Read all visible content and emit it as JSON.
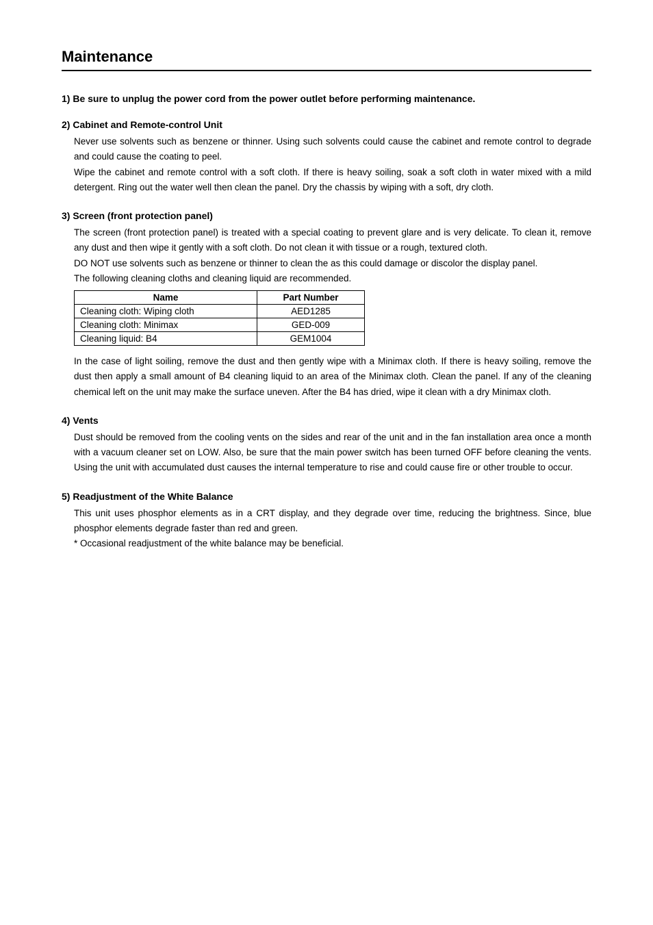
{
  "title": "Maintenance",
  "sections": {
    "s1": {
      "heading": "1) Be sure to unplug the power cord from the power outlet before performing maintenance."
    },
    "s2": {
      "heading": "2) Cabinet and Remote-control Unit",
      "p1": "Never use solvents such as benzene or thinner. Using such solvents could cause the cabinet and remote control to degrade and could cause the coating to peel.",
      "p2": "Wipe the cabinet and remote control with a soft cloth. If there is heavy soiling, soak a soft cloth in water mixed with a mild detergent. Ring out the water well then clean the panel. Dry the chassis by wiping with a soft, dry cloth."
    },
    "s3": {
      "heading": "3) Screen (front protection panel)",
      "p1": "The screen (front protection panel) is treated with a special coating to prevent glare and is very delicate. To clean it, remove any dust and then wipe it gently with a soft cloth. Do not clean it with tissue or a rough, textured cloth.",
      "p2": "DO NOT use solvents such as benzene or thinner to clean the as this could damage or discolor the display panel.",
      "p3": "The following cleaning cloths and cleaning liquid are recommended.",
      "table": {
        "headers": {
          "name": "Name",
          "part": "Part Number"
        },
        "rows": [
          {
            "name": "Cleaning cloth: Wiping cloth",
            "part": "AED1285"
          },
          {
            "name": "Cleaning cloth: Minimax",
            "part": "GED-009"
          },
          {
            "name": "Cleaning liquid: B4",
            "part": "GEM1004"
          }
        ]
      },
      "p4": "In the case of light soiling, remove the dust and then gently wipe with a Minimax cloth. If there is heavy soiling, remove the dust then apply a small amount of B4 cleaning liquid to an area of the Minimax cloth. Clean the panel. If any of the cleaning chemical left on the unit may make the surface uneven. After the B4 has dried, wipe it clean with a dry Minimax cloth."
    },
    "s4": {
      "heading": "4) Vents",
      "p1": "Dust should be removed from the cooling vents on the sides and rear of the unit and in the fan installation area once a month with a vacuum cleaner set on LOW. Also, be sure that the main power switch has been turned OFF before cleaning the vents. Using the unit with accumulated dust causes the internal temperature to rise and could cause fire or other trouble to occur."
    },
    "s5": {
      "heading": "5) Readjustment of the White Balance",
      "p1": "This unit uses phosphor elements as in a CRT display, and they degrade over time, reducing the brightness. Since, blue phosphor elements degrade faster than red  and green.",
      "p2": "* Occasional readjustment of the white balance may be beneficial."
    }
  },
  "style": {
    "title_fontsize": 22,
    "heading_fontsize": 14,
    "body_fontsize": 13.5,
    "line_height": 1.65,
    "text_color": "#000000",
    "background_color": "#ffffff",
    "border_color": "#000000",
    "table_name_col_width": 250,
    "table_part_col_width": 140
  }
}
